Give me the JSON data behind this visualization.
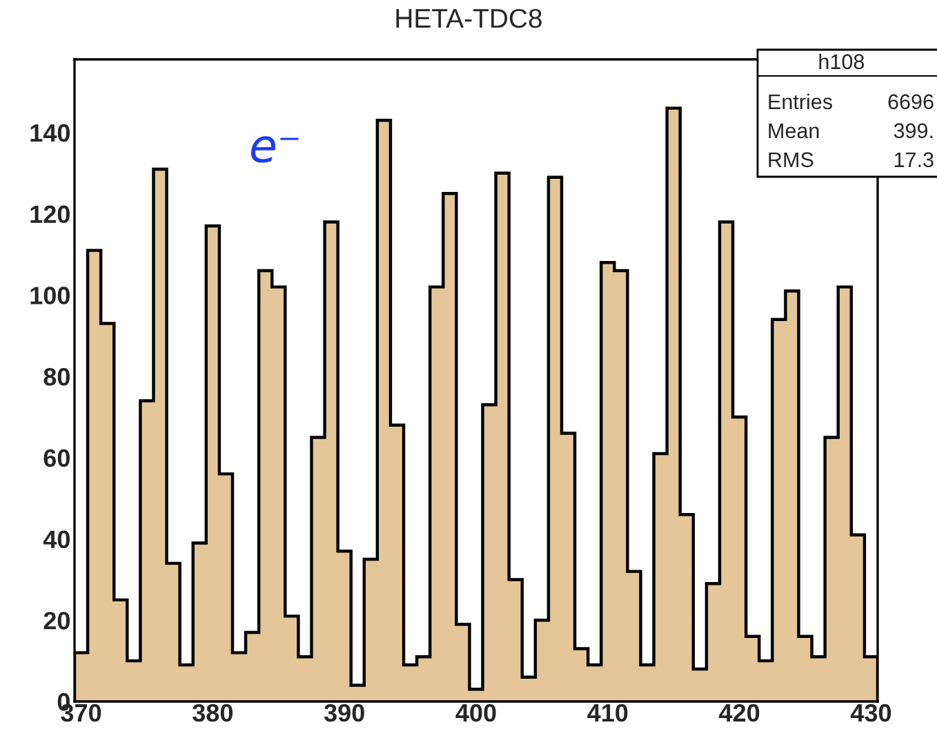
{
  "chart_data": {
    "type": "histogram",
    "title": "HETA-TDC8",
    "bins": [
      369.5,
      370.5,
      371.5,
      372.5,
      373.5,
      374.5,
      375.5,
      376.5,
      377.5,
      378.5,
      379.5,
      380.5,
      381.5,
      382.5,
      383.5,
      384.5,
      385.5,
      386.5,
      387.5,
      388.5,
      389.5,
      390.5,
      391.5,
      392.5,
      393.5,
      394.5,
      395.5,
      396.5,
      397.5,
      398.5,
      399.5,
      400.5,
      401.5,
      402.5,
      403.5,
      404.5,
      405.5,
      406.5,
      407.5,
      408.5,
      409.5,
      410.5,
      411.5,
      412.5,
      413.5,
      414.5,
      415.5,
      416.5,
      417.5,
      418.5,
      419.5,
      420.5,
      421.5,
      422.5,
      423.5,
      424.5,
      425.5,
      426.5,
      427.5,
      428.5,
      429.5,
      430.5
    ],
    "values": [
      12,
      111,
      93,
      25,
      10,
      74,
      131,
      34,
      9,
      39,
      117,
      56,
      12,
      17,
      106,
      102,
      21,
      11,
      65,
      118,
      37,
      4,
      35,
      143,
      68,
      9,
      11,
      102,
      125,
      19,
      3,
      73,
      130,
      30,
      6,
      20,
      129,
      66,
      13,
      9,
      108,
      106,
      32,
      9,
      61,
      146,
      46,
      8,
      29,
      118,
      70,
      16,
      10,
      94,
      101,
      16,
      11,
      65,
      102,
      41,
      11
    ],
    "color": "#e5c698",
    "xlim": [
      369.5,
      430.5
    ],
    "ylim": [
      0,
      158
    ],
    "xticks": [
      370,
      380,
      390,
      400,
      410,
      420,
      430
    ],
    "yticks": [
      0,
      20,
      40,
      60,
      80,
      100,
      120,
      140
    ],
    "annotations": [
      "e⁻",
      "h108",
      "Entries",
      "6696",
      "Mean",
      "399.",
      "RMS",
      "17.3"
    ]
  }
}
